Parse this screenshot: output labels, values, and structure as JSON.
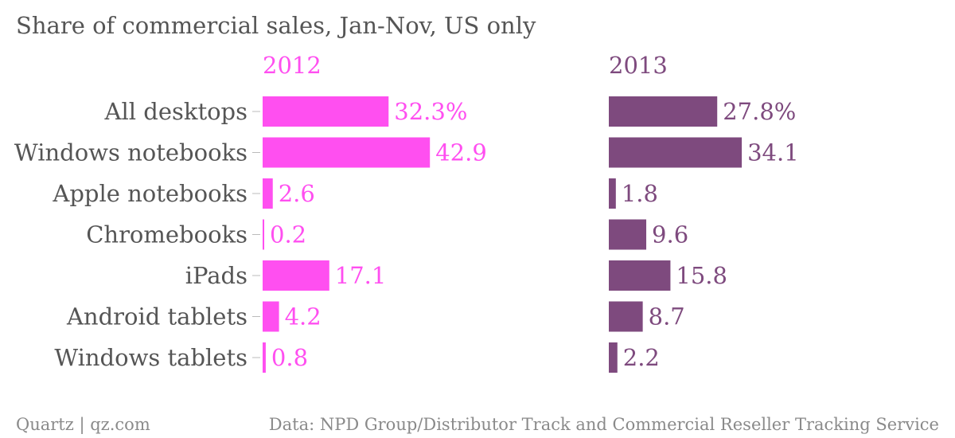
{
  "chart_data": {
    "type": "bar",
    "orientation": "horizontal",
    "layout": "small-multiples",
    "title": "Share of commercial sales, Jan-Nov, US only",
    "categories": [
      "All desktops",
      "Windows notebooks",
      "Apple notebooks",
      "Chromebooks",
      "iPads",
      "Android tablets",
      "Windows tablets"
    ],
    "series": [
      {
        "name": "2012",
        "color": "#ff4ff0",
        "values": [
          32.3,
          42.9,
          2.6,
          0.2,
          17.1,
          4.2,
          0.8
        ],
        "value_labels": [
          "32.3%",
          "42.9",
          "2.6",
          "0.2",
          "17.1",
          "4.2",
          "0.8"
        ]
      },
      {
        "name": "2013",
        "color": "#7e4a7e",
        "values": [
          27.8,
          34.1,
          1.8,
          9.6,
          15.8,
          8.7,
          2.2
        ],
        "value_labels": [
          "27.8%",
          "34.1",
          "1.8",
          "9.6",
          "15.8",
          "8.7",
          "2.2"
        ]
      }
    ],
    "xlim": [
      0,
      50
    ],
    "grid": false,
    "legend": "none"
  },
  "footer": {
    "source_left": "Quartz | qz.com",
    "source_right": "Data: NPD Group/Distributor Track and Commercial Reseller Tracking Service"
  }
}
